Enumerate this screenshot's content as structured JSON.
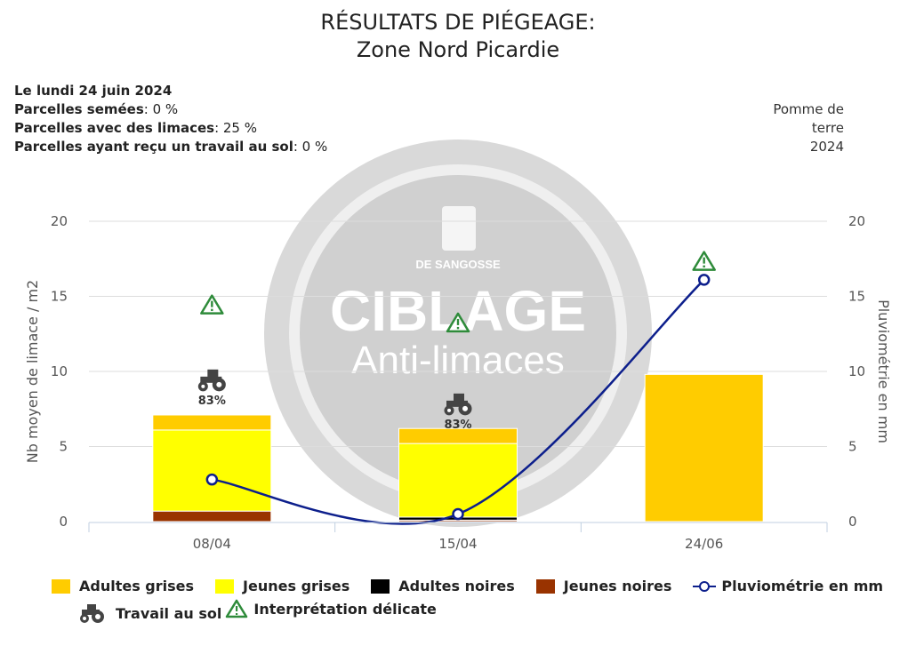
{
  "title_line1": "RÉSULTATS DE PIÉGEAGE:",
  "title_line2": "Zone Nord Picardie",
  "info": {
    "date": "Le lundi 24 juin 2024",
    "sown_label": "Parcelles semées",
    "sown_value": ": 0 %",
    "slugs_label": "Parcelles avec des limaces",
    "slugs_value": ": 25 %",
    "tillage_label": "Parcelles ayant reçu un travail au sol",
    "tillage_value": ": 0 %"
  },
  "crop": {
    "line1": "Pomme de",
    "line2": "terre",
    "year": "2024"
  },
  "watermark": {
    "brand": "DE SANGOSSE",
    "word1": "CIBLAGE",
    "word2": "Anti-limaces"
  },
  "colors": {
    "adultes_grises": "#ffcc00",
    "jeunes_grises": "#ffff00",
    "adultes_noires": "#000000",
    "jeunes_noires": "#993300",
    "pluvio": "#0d1f8c",
    "warning": "#2e8b3a"
  },
  "chart_data": {
    "type": "bar",
    "categories": [
      "08/04",
      "15/04",
      "24/06"
    ],
    "ylabel": "Nb moyen de limace / m2",
    "y2label": "Pluviométrie en mm",
    "ylim": [
      0,
      20
    ],
    "y2lim": [
      0,
      20
    ],
    "yticks": [
      0,
      5,
      10,
      15,
      20
    ],
    "stacked": true,
    "series": [
      {
        "name": "Jeunes noires",
        "values": [
          0.7,
          0.1,
          0
        ],
        "color": "#993300"
      },
      {
        "name": "Adultes noires",
        "values": [
          0,
          0.2,
          0
        ],
        "color": "#000000"
      },
      {
        "name": "Jeunes grises",
        "values": [
          5.4,
          4.9,
          0
        ],
        "color": "#ffff00"
      },
      {
        "name": "Adultes grises",
        "values": [
          1.0,
          1.0,
          9.8
        ],
        "color": "#ffcc00"
      }
    ],
    "line_series": {
      "name": "Pluviométrie en mm",
      "values": [
        2.8,
        0.5,
        16.1
      ],
      "axis": "right"
    },
    "tillage_markers": [
      {
        "category": "08/04",
        "label": "83%",
        "y": 9.3
      },
      {
        "category": "15/04",
        "label": "83%",
        "y": 7.7
      }
    ],
    "warning_markers": [
      {
        "category": "08/04",
        "y": 14.4
      },
      {
        "category": "15/04",
        "y": 13.2
      },
      {
        "category": "24/06",
        "y": 17.3
      }
    ],
    "grid": true
  },
  "legend": {
    "adultes_grises": "Adultes grises",
    "jeunes_grises": "Jeunes grises",
    "adultes_noires": "Adultes noires",
    "jeunes_noires": "Jeunes noires",
    "pluvio": "Pluviométrie en mm",
    "travail": "Travail au sol",
    "interpretation": "Interprétation délicate"
  }
}
